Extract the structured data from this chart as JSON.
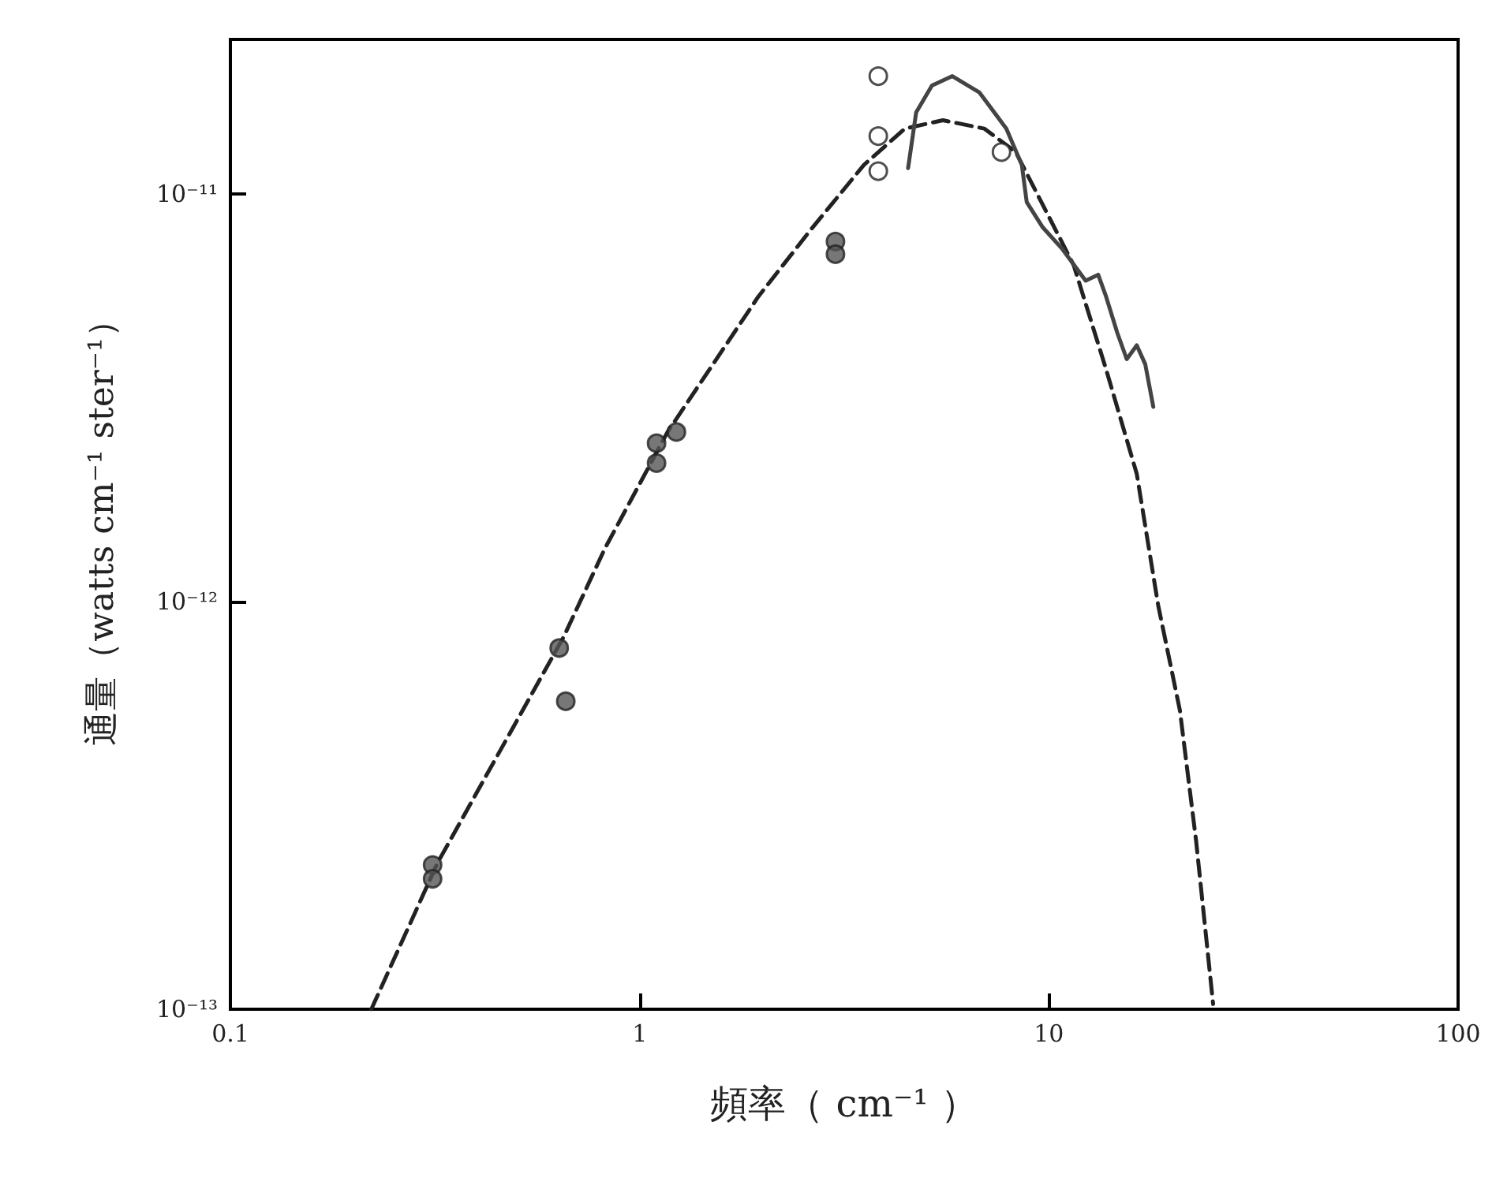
{
  "chart_data": {
    "type": "scatter",
    "xlabel": "頻率（ cm⁻¹ ）",
    "ylabel": "通量（watts cm⁻¹ ster⁻¹）",
    "log": "xy",
    "grid": false,
    "xlim": [
      0.1,
      100
    ],
    "xticks": [
      0.1,
      1,
      10,
      100
    ],
    "ylim": [
      1e-13,
      2.4e-11
    ],
    "yticks": [
      {
        "value": 1e-13,
        "label": "10⁻¹³"
      },
      {
        "value": 1e-12,
        "label": "10⁻¹²"
      },
      {
        "value": 1e-11,
        "label": "10⁻¹¹"
      }
    ],
    "series": [
      {
        "type": "line",
        "color": "#222222",
        "line_style": "dashed",
        "marker": "none",
        "x": [
          0.221,
          0.321,
          0.653,
          0.822,
          1.17,
          1.95,
          2.61,
          3.53,
          4.45,
          5.51,
          6.95,
          8.3,
          11.5,
          13.8,
          16.4,
          18.5,
          20.9,
          22.9,
          25.2
        ],
        "values": [
          1e-13,
          2.29e-13,
          8.22e-13,
          1.35e-12,
          2.61e-12,
          5.61e-12,
          8.15e-12,
          1.18e-11,
          1.45e-11,
          1.52e-11,
          1.45e-11,
          1.27e-11,
          6.7e-12,
          3.72e-12,
          2.06e-12,
          9.8e-13,
          5.42e-13,
          2.59e-13,
          1.03e-13
        ]
      },
      {
        "type": "line",
        "color": "#444444",
        "line_style": "solid",
        "marker": "none",
        "x": [
          4.53,
          4.74,
          5.18,
          5.81,
          6.76,
          7.87,
          8.59,
          8.83,
          9.66,
          10.8,
          12.3,
          13.2,
          13.8,
          14.7,
          15.5,
          16.4,
          17.2,
          18.0
        ],
        "values": [
          1.16e-11,
          1.59e-11,
          1.85e-11,
          1.95e-11,
          1.78e-11,
          1.45e-11,
          1.18e-11,
          9.57e-12,
          8.3e-12,
          7.33e-12,
          6.14e-12,
          6.35e-12,
          5.61e-12,
          4.57e-12,
          3.94e-12,
          4.26e-12,
          3.83e-12,
          3.01e-12
        ]
      },
      {
        "color": "#555555",
        "marker": "circle",
        "x": [
          0.312,
          0.312,
          0.636,
          0.66,
          1.1,
          1.1,
          1.23,
          3.01,
          3.01
        ],
        "values": [
          2.26e-13,
          2.09e-13,
          7.7e-13,
          5.7e-13,
          2.45e-12,
          2.19e-12,
          2.61e-12,
          7.66e-12,
          7.13e-12
        ]
      },
      {
        "color": "#ffffff",
        "marker": "circle",
        "x": [
          3.83,
          3.83,
          3.83,
          7.66
        ],
        "values": [
          1.95e-11,
          1.39e-11,
          1.14e-11,
          1.27e-11
        ]
      }
    ]
  }
}
